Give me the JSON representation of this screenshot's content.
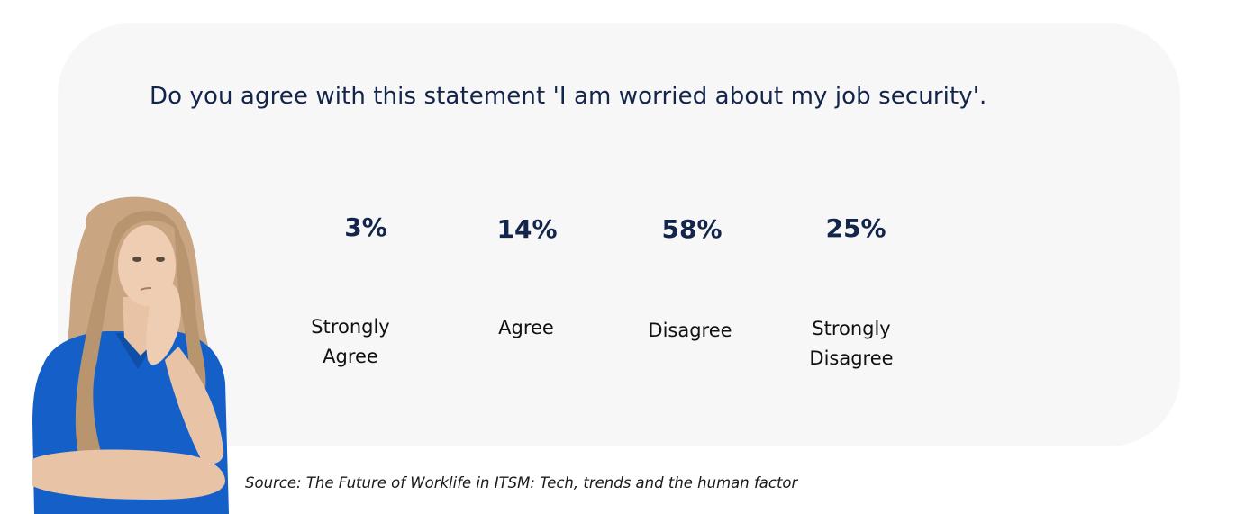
{
  "question": "Do you agree with this statement 'I am worried about my job security'.",
  "stats": [
    {
      "percent": "3%",
      "label_line1": "Strongly",
      "label_line2": "Agree"
    },
    {
      "percent": "14%",
      "label_line1": "Agree",
      "label_line2": ""
    },
    {
      "percent": "58%",
      "label_line1": "Disagree",
      "label_line2": ""
    },
    {
      "percent": "25%",
      "label_line1": "Strongly",
      "label_line2": "Disagree"
    }
  ],
  "source": "Source: The Future of Worklife in ITSM: Tech, trends and the human factor",
  "colors": {
    "card_background": "#f7f7f8",
    "heading": "#13254a",
    "shirt": "#1560c8",
    "hair": "#c9a581"
  }
}
